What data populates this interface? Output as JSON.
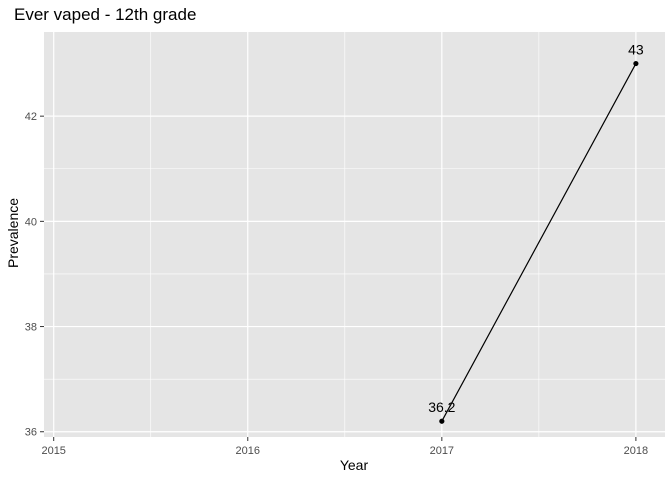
{
  "chart_data": {
    "type": "line",
    "title": "Ever vaped - 12th grade",
    "xlabel": "Year",
    "ylabel": "Prevalence",
    "x_ticks": [
      "2015",
      "2016",
      "2017",
      "2018"
    ],
    "y_ticks": [
      "36",
      "38",
      "40",
      "42"
    ],
    "xlim": [
      2014.95,
      2018.15
    ],
    "ylim": [
      35.9,
      43.6
    ],
    "grid": true,
    "series": [
      {
        "x": [
          2017,
          2018
        ],
        "values": [
          36.2,
          43.0
        ],
        "labels": [
          "36.2",
          "43"
        ],
        "color": "#000000"
      }
    ],
    "panel_color": "#e5e5e5",
    "grid_color": "#ffffff"
  }
}
